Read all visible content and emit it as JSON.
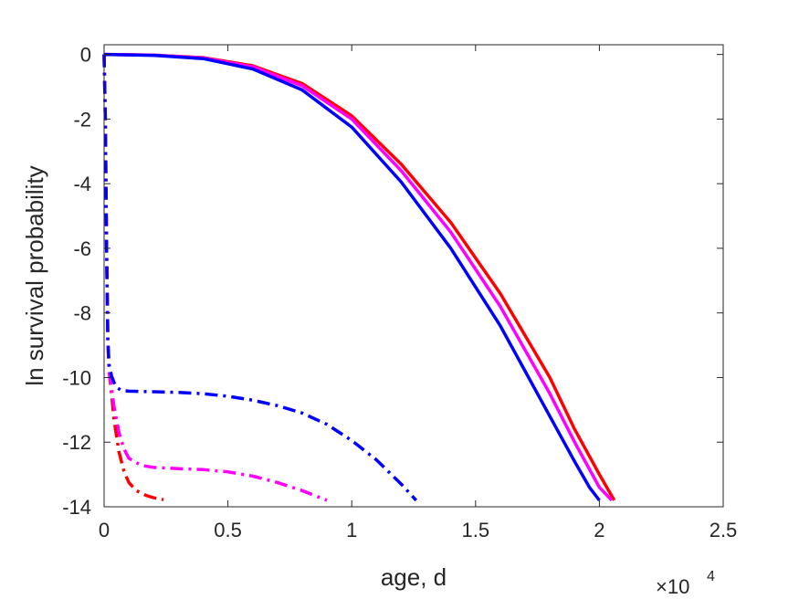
{
  "chart_data": {
    "type": "line",
    "title": "",
    "xlabel": "age, d",
    "ylabel": "ln survival probability",
    "x_exponent_label": "×10",
    "x_exponent_power": "4",
    "xlim": [
      0,
      25000
    ],
    "ylim": [
      -14,
      0.3
    ],
    "grid": false,
    "legend": "none",
    "x_ticks": [
      0,
      5000,
      10000,
      15000,
      20000,
      25000
    ],
    "x_tick_labels": [
      "0",
      "0.5",
      "1",
      "1.5",
      "2",
      "2.5"
    ],
    "y_ticks": [
      0,
      -2,
      -4,
      -6,
      -8,
      -10,
      -12,
      -14
    ],
    "y_tick_labels": [
      "0",
      "-2",
      "-4",
      "-6",
      "-8",
      "-10",
      "-12",
      "-14"
    ],
    "series": [
      {
        "color": "#ff0000",
        "style": "solid",
        "x": [
          0,
          2000,
          4000,
          6000,
          8000,
          10000,
          12000,
          14000,
          16000,
          18000,
          19000,
          20000,
          20600
        ],
        "y": [
          0,
          -0.02,
          -0.1,
          -0.35,
          -0.9,
          -1.9,
          -3.4,
          -5.2,
          -7.4,
          -10.0,
          -11.6,
          -13.0,
          -13.8
        ]
      },
      {
        "color": "#ff00ff",
        "style": "solid",
        "x": [
          0,
          2000,
          4000,
          6000,
          8000,
          10000,
          12000,
          14000,
          16000,
          18000,
          19000,
          20000,
          20500
        ],
        "y": [
          0,
          -0.02,
          -0.11,
          -0.38,
          -0.97,
          -2.0,
          -3.6,
          -5.5,
          -7.8,
          -10.5,
          -12.0,
          -13.4,
          -13.8
        ]
      },
      {
        "color": "#0000ff",
        "style": "solid",
        "x": [
          0,
          2000,
          4000,
          6000,
          8000,
          10000,
          12000,
          14000,
          16000,
          18000,
          19000,
          19600,
          20000
        ],
        "y": [
          0,
          -0.03,
          -0.13,
          -0.45,
          -1.1,
          -2.25,
          -3.95,
          -6.0,
          -8.4,
          -11.2,
          -12.6,
          -13.4,
          -13.8
        ]
      },
      {
        "color": "#ff0000",
        "style": "dashdot",
        "x": [
          0,
          50,
          100,
          150,
          200,
          300,
          400,
          600,
          800,
          1000,
          1300,
          1700,
          2000,
          2400
        ],
        "y": [
          0,
          -2,
          -6,
          -8.8,
          -9.8,
          -10.5,
          -11.3,
          -12.3,
          -12.9,
          -13.25,
          -13.5,
          -13.65,
          -13.72,
          -13.78
        ]
      },
      {
        "color": "#ff00ff",
        "style": "dashdot",
        "x": [
          0,
          50,
          100,
          150,
          200,
          300,
          400,
          600,
          800,
          1000,
          1500,
          2000,
          3000,
          4000,
          5000,
          6000,
          7000,
          8000,
          9000
        ],
        "y": [
          0,
          -2,
          -6,
          -8.8,
          -9.8,
          -10.3,
          -10.9,
          -11.7,
          -12.2,
          -12.5,
          -12.72,
          -12.78,
          -12.82,
          -12.85,
          -12.92,
          -13.05,
          -13.25,
          -13.5,
          -13.8
        ]
      },
      {
        "color": "#0000ff",
        "style": "dashdot",
        "x": [
          0,
          50,
          100,
          150,
          200,
          300,
          400,
          500,
          700,
          1000,
          2000,
          3000,
          4000,
          5000,
          6000,
          7000,
          8000,
          9000,
          10000,
          11000,
          12000,
          12600
        ],
        "y": [
          0,
          -2,
          -6,
          -8.8,
          -9.6,
          -9.95,
          -10.15,
          -10.3,
          -10.4,
          -10.42,
          -10.44,
          -10.46,
          -10.5,
          -10.58,
          -10.7,
          -10.87,
          -11.1,
          -11.45,
          -11.95,
          -12.55,
          -13.3,
          -13.8
        ]
      }
    ]
  }
}
